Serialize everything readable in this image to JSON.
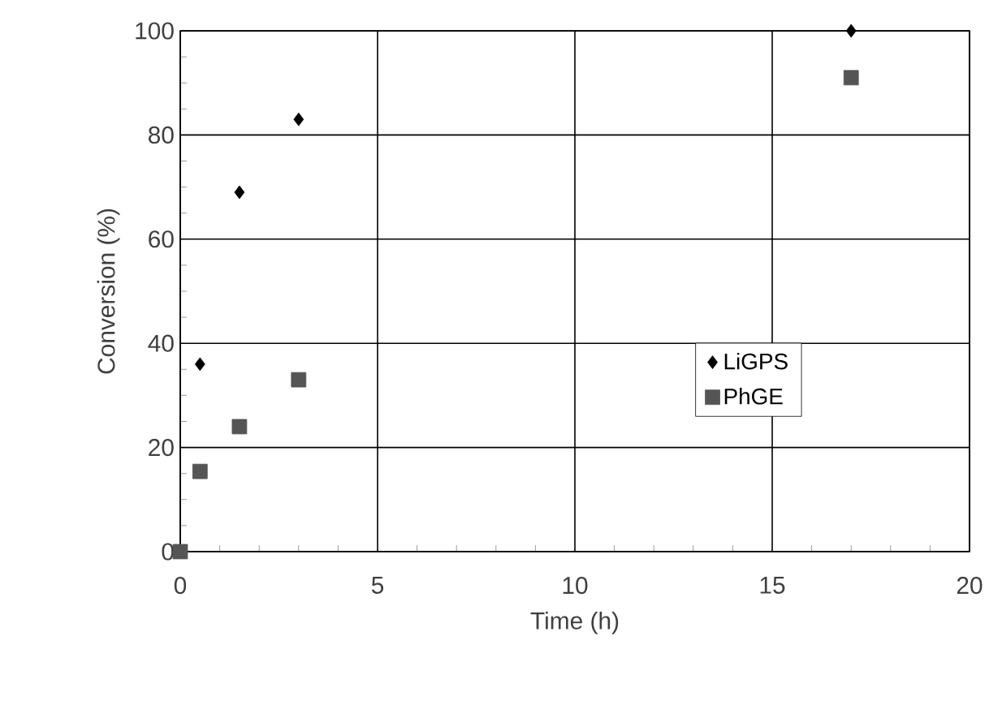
{
  "chart_data": {
    "type": "scatter",
    "xlabel": "Time (h)",
    "ylabel": "Conversion (%)",
    "xlim": [
      0,
      20
    ],
    "xticks": [
      0,
      5,
      10,
      15,
      20
    ],
    "ylim": [
      0,
      100
    ],
    "yticks": [
      0,
      20,
      40,
      60,
      80,
      100
    ],
    "grid": true,
    "legend": "right",
    "series": [
      {
        "name": "LiGPS",
        "color": "#000000",
        "marker": "diamond",
        "x": [
          0.5,
          1.5,
          3,
          17
        ],
        "values": [
          36,
          69,
          83,
          100
        ]
      },
      {
        "name": "PhGE",
        "color": "#555555",
        "marker": "square",
        "x": [
          0,
          0.5,
          1.5,
          3,
          17
        ],
        "values": [
          0,
          15.4,
          24,
          33,
          91
        ]
      }
    ]
  }
}
